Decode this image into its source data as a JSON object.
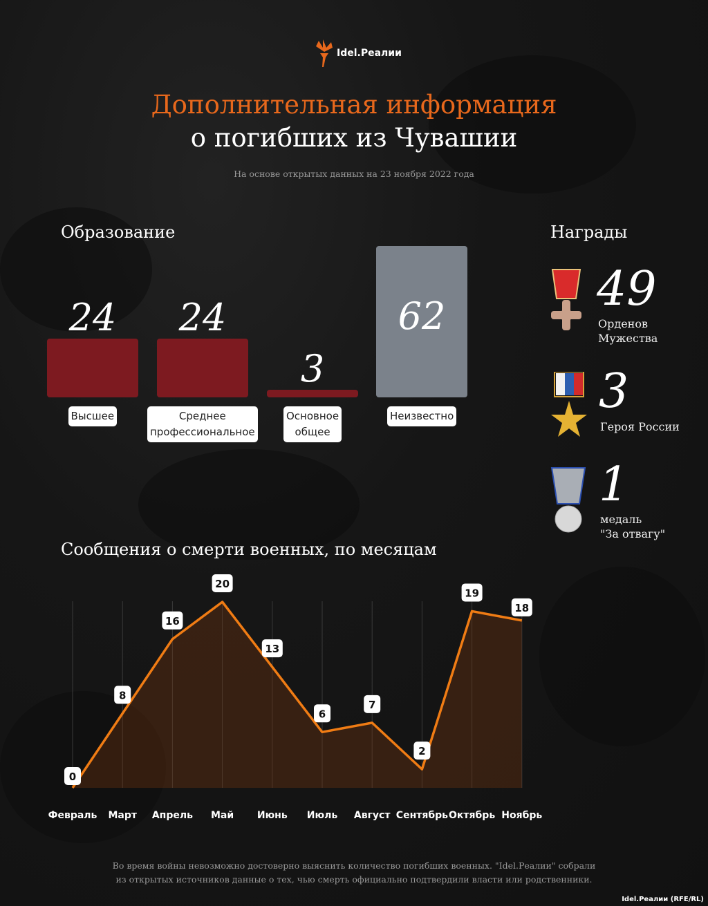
{
  "brand": {
    "logo_text": "Idel.Реалии",
    "credit": "Idel.Реалии (RFE/RL)"
  },
  "header": {
    "title_line1": "Дополнительная информация",
    "title_line2": "о погибших из Чувашии",
    "subtitle": "На основе открытых данных на 23 ноября 2022 года"
  },
  "colors": {
    "accent": "#e8681c",
    "bar_known": "#7d1a20",
    "bar_unknown": "#7b828b",
    "line": "#f07c14"
  },
  "awards": {
    "title": "Награды",
    "items": [
      {
        "value": "49",
        "label_line1": "Орденов",
        "label_line2": "Мужества",
        "icon": "order-of-courage-icon"
      },
      {
        "value": "3",
        "label_line1": "Героя России",
        "label_line2": "",
        "icon": "hero-of-russia-star-icon"
      },
      {
        "value": "1",
        "label_line1": "медаль",
        "label_line2": "\"За отвагу\"",
        "icon": "medal-for-courage-icon"
      }
    ]
  },
  "chart_data": [
    {
      "type": "bar",
      "title": "Образование",
      "categories": [
        "Высшее",
        "Среднее профессиональное",
        "Основное общее",
        "Неизвестно"
      ],
      "category_lines": [
        [
          "Высшее"
        ],
        [
          "Среднее",
          "профессиональное"
        ],
        [
          "Основное",
          "общее"
        ],
        [
          "Неизвестно"
        ]
      ],
      "values": [
        24,
        24,
        3,
        62
      ]
    },
    {
      "type": "line",
      "title": "Сообщения о смерти военных, по месяцам",
      "categories": [
        "Февраль",
        "Март",
        "Апрель",
        "Май",
        "Июнь",
        "Июль",
        "Август",
        "Сентябрь",
        "Октябрь",
        "Ноябрь"
      ],
      "values": [
        0,
        8,
        16,
        20,
        13,
        6,
        7,
        2,
        19,
        18
      ],
      "grid": "vertical",
      "area_fill": true
    }
  ],
  "footer": {
    "line1": "Во время войны невозможно достоверно выяснить количество погибших военных. \"Idel.Реалии\" собрали",
    "line2": "из открытых источников данные о тех, чью смерть официально подтвердили власти или родственники."
  }
}
